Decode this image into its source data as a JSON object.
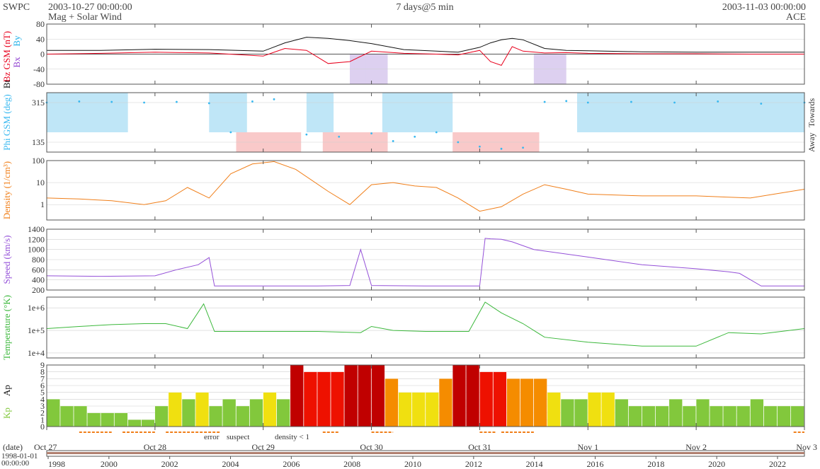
{
  "header": {
    "org": "SWPC",
    "start_time": "2003-10-27 00:00:00",
    "subtitle": "Mag + Solar Wind",
    "span": "7 days@5 min",
    "end_time": "2003-11-03 00:00:00",
    "source": "ACE"
  },
  "colors": {
    "bz": "#e8001c",
    "bt": "#111111",
    "bx": "#9040d0",
    "by": "#20b0e8",
    "phi": "#38b8f0",
    "phi_away": "#bfe6f7",
    "phi_towards": "#f9c9c9",
    "density": "#f07f1a",
    "speed": "#9450d8",
    "temperature": "#3cb83c",
    "kp_green": "#82c83c",
    "kp_yellow": "#f0e010",
    "kp_orange": "#f58c00",
    "kp_red": "#ee1100",
    "kp_darkred": "#c00000",
    "bad_error": "#e8001c",
    "bad_suspect": "#f0c000",
    "bad_density": "#f07f1a"
  },
  "chart_data": [
    {
      "type": "line",
      "panel": "mag",
      "ylabel_parts": [
        "Bz GSM (nT)",
        "Bt"
      ],
      "legend_extra": [
        "Bx",
        "By"
      ],
      "ylim": [
        -80,
        80
      ],
      "yticks": [
        -80,
        -40,
        0,
        40,
        80
      ],
      "x_unit": "days since 2003-10-27 00:00",
      "series": [
        {
          "name": "Bt",
          "x": [
            0,
            0.5,
            1.0,
            1.5,
            2.0,
            2.2,
            2.4,
            2.6,
            2.8,
            3.0,
            3.3,
            3.6,
            3.8,
            4.0,
            4.1,
            4.2,
            4.3,
            4.4,
            4.6,
            4.8,
            5.0,
            5.5,
            6.0,
            6.5,
            7.0
          ],
          "y": [
            10,
            10,
            13,
            12,
            8,
            30,
            45,
            42,
            36,
            28,
            12,
            8,
            5,
            18,
            30,
            38,
            42,
            38,
            15,
            10,
            9,
            6,
            5,
            5,
            5
          ]
        },
        {
          "name": "Bz",
          "x": [
            0,
            0.5,
            1.0,
            1.5,
            2.0,
            2.2,
            2.4,
            2.6,
            2.8,
            3.0,
            3.3,
            3.6,
            3.8,
            4.0,
            4.1,
            4.2,
            4.3,
            4.4,
            4.6,
            4.8,
            5.0,
            5.5,
            6.0,
            6.5,
            7.0
          ],
          "y": [
            0,
            2,
            5,
            3,
            -5,
            15,
            10,
            -25,
            -20,
            8,
            2,
            0,
            -2,
            10,
            -20,
            -30,
            20,
            8,
            3,
            4,
            2,
            1,
            1,
            0,
            0
          ]
        }
      ]
    },
    {
      "type": "scatter",
      "panel": "phi",
      "ylabel": "Phi GSM (deg)",
      "right_labels": [
        "Away",
        "Towards"
      ],
      "ylim": [
        90,
        360
      ],
      "yticks": [
        135,
        315
      ],
      "series": [
        {
          "name": "Phi",
          "x": [
            0,
            0.3,
            0.6,
            0.9,
            1.2,
            1.5,
            1.7,
            1.9,
            2.1,
            2.4,
            2.7,
            3.0,
            3.2,
            3.4,
            3.6,
            3.8,
            4.0,
            4.2,
            4.4,
            4.6,
            4.8,
            5.0,
            5.4,
            5.8,
            6.2,
            6.6,
            7.0
          ],
          "y": [
            315,
            320,
            318,
            315,
            318,
            312,
            180,
            320,
            330,
            170,
            160,
            175,
            140,
            160,
            180,
            135,
            115,
            105,
            110,
            318,
            322,
            315,
            318,
            315,
            320,
            310,
            315
          ]
        }
      ],
      "away_bands": [
        [
          0.0,
          0.75
        ],
        [
          1.5,
          1.85
        ],
        [
          2.4,
          2.65
        ],
        [
          3.1,
          3.75
        ],
        [
          4.9,
          7.0
        ]
      ],
      "towards_bands": [
        [
          1.75,
          2.35
        ],
        [
          2.55,
          3.15
        ],
        [
          3.75,
          4.55
        ]
      ]
    },
    {
      "type": "line",
      "panel": "density",
      "ylabel": "Density (1/cm³)",
      "scale": "log",
      "ylim": [
        0.2,
        100
      ],
      "yticks": [
        1,
        10,
        100
      ],
      "series": [
        {
          "name": "Density",
          "x": [
            0,
            0.3,
            0.6,
            0.9,
            1.1,
            1.3,
            1.5,
            1.7,
            1.9,
            2.1,
            2.3,
            2.6,
            2.8,
            3.0,
            3.2,
            3.4,
            3.6,
            3.8,
            4.0,
            4.2,
            4.4,
            4.6,
            4.8,
            5.0,
            5.5,
            6.0,
            6.5,
            7.0
          ],
          "y": [
            2,
            1.8,
            1.5,
            1.0,
            1.5,
            6,
            2,
            25,
            70,
            90,
            40,
            4,
            1.0,
            8,
            10,
            7,
            6,
            2,
            0.5,
            0.8,
            3,
            8,
            5,
            3,
            2.5,
            2.5,
            2,
            5
          ]
        }
      ]
    },
    {
      "type": "line",
      "panel": "speed",
      "ylabel": "Speed (km/s)",
      "ylim": [
        200,
        1400
      ],
      "yticks": [
        200,
        400,
        600,
        800,
        1000,
        1200,
        1400
      ],
      "series": [
        {
          "name": "Speed",
          "x": [
            0,
            0.5,
            1.0,
            1.2,
            1.4,
            1.5,
            1.55,
            1.7,
            2.0,
            2.5,
            2.8,
            2.9,
            3.0,
            3.5,
            4.0,
            4.05,
            4.1,
            4.2,
            4.3,
            4.5,
            5.0,
            5.5,
            6.0,
            6.3,
            6.4,
            6.6,
            7.0
          ],
          "y": [
            480,
            470,
            480,
            600,
            700,
            840,
            280,
            280,
            280,
            280,
            290,
            1000,
            290,
            280,
            280,
            1220,
            1210,
            1200,
            1150,
            1000,
            850,
            700,
            620,
            560,
            530,
            280,
            280
          ]
        }
      ]
    },
    {
      "type": "line",
      "panel": "temperature",
      "ylabel": "Temperature (°K)",
      "scale": "log",
      "ylim": [
        6000,
        3000000
      ],
      "yticks": [
        10000,
        100000,
        1000000
      ],
      "ytick_labels": [
        "1e+4",
        "1e+5",
        "1e+6"
      ],
      "series": [
        {
          "name": "Temperature",
          "x": [
            0,
            0.3,
            0.6,
            0.9,
            1.1,
            1.3,
            1.45,
            1.55,
            1.7,
            2.0,
            2.5,
            2.9,
            3.0,
            3.2,
            3.5,
            3.9,
            4.05,
            4.2,
            4.4,
            4.6,
            5.0,
            5.5,
            6.0,
            6.3,
            6.6,
            7.0
          ],
          "y": [
            120000,
            150000,
            180000,
            200000,
            200000,
            120000,
            1500000,
            90000,
            90000,
            90000,
            90000,
            80000,
            150000,
            100000,
            90000,
            90000,
            1800000,
            600000,
            200000,
            50000,
            30000,
            20000,
            20000,
            80000,
            70000,
            120000
          ]
        }
      ]
    },
    {
      "type": "bar",
      "panel": "kp",
      "ylabel_parts": [
        "Kp",
        "Ap"
      ],
      "ylim": [
        0,
        9
      ],
      "yticks": [
        0,
        1,
        2,
        3,
        4,
        5,
        6,
        7,
        8,
        9
      ],
      "interval_hours": 3,
      "values": [
        4,
        3,
        3,
        2,
        2,
        2,
        1,
        1,
        3,
        5,
        4,
        5,
        3,
        4,
        3,
        4,
        5,
        4,
        9,
        8,
        8,
        8,
        9,
        9,
        9,
        7,
        5,
        5,
        5,
        7,
        9,
        9,
        8,
        8,
        7,
        7,
        7,
        5,
        4,
        4,
        5,
        5,
        4,
        3,
        3,
        3,
        4,
        3,
        4,
        3,
        3,
        3,
        4,
        3,
        3,
        3
      ]
    }
  ],
  "flags": {
    "error": "error",
    "suspect": "suspect",
    "density": "density < 1"
  },
  "xaxis": {
    "label": "(date)",
    "dates": [
      "Oct 27",
      "Oct 28",
      "Oct 29",
      "Oct 30",
      "Oct 31",
      "Nov 1",
      "Nov 2",
      "Nov 3"
    ],
    "overview_start": "1998-01-01\n00:00:00",
    "overview_start_date": "1998-01-01",
    "overview_start_time": "00:00:00",
    "years": [
      "1998",
      "2000",
      "2002",
      "2004",
      "2006",
      "2008",
      "2010",
      "2012",
      "2014",
      "2016",
      "2018",
      "2020",
      "2022"
    ]
  }
}
